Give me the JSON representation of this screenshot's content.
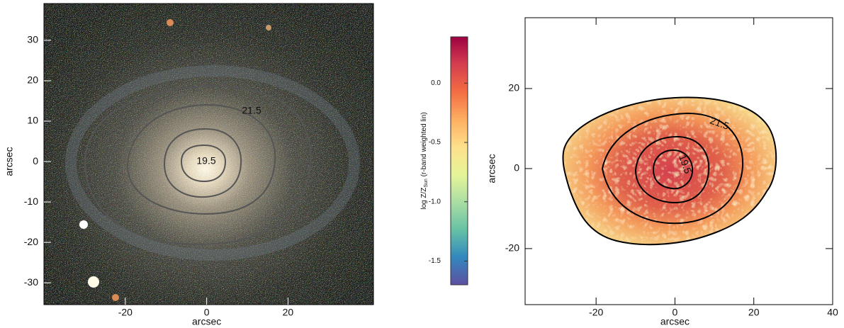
{
  "chart_data": [
    {
      "type": "image",
      "xlabel": "arcsec",
      "ylabel": "arcsec",
      "xlim": [
        -40,
        41
      ],
      "ylim": [
        -35.4,
        39.1
      ],
      "xticks": [
        -20,
        0,
        20
      ],
      "yticks": [
        -30,
        -20,
        -10,
        0,
        10,
        20,
        30
      ],
      "contour_levels": [
        21.5,
        19.5
      ]
    },
    {
      "type": "colorbar",
      "label": "log Z/Z",
      "label_sub": "Sun",
      "label_rest": "(r-band weighted lin)",
      "ylim": [
        -1.7,
        0.39
      ],
      "yticks": [
        {
          "value": 0,
          "label": "0.0"
        },
        {
          "value": -0.5,
          "label": "-0.5"
        },
        {
          "value": -1,
          "label": "-1.0"
        },
        {
          "value": -1.5,
          "label": "-1.5"
        }
      ],
      "colormap_colors": [
        "#5e4fa2",
        "#3288bd",
        "#66c2a5",
        "#abdda4",
        "#e6f598",
        "#fee08b",
        "#fdae61",
        "#f46d43",
        "#d53e4f",
        "#9e0142"
      ]
    },
    {
      "type": "map",
      "xlabel": "arcsec",
      "ylabel": "arcsec",
      "xlim": [
        -38,
        40
      ],
      "ylim": [
        -34,
        37.7
      ],
      "xticks": [
        -20,
        0,
        20,
        40
      ],
      "yticks": [
        -20,
        0,
        20
      ],
      "contour_levels": [
        21.5,
        19.5
      ]
    }
  ]
}
